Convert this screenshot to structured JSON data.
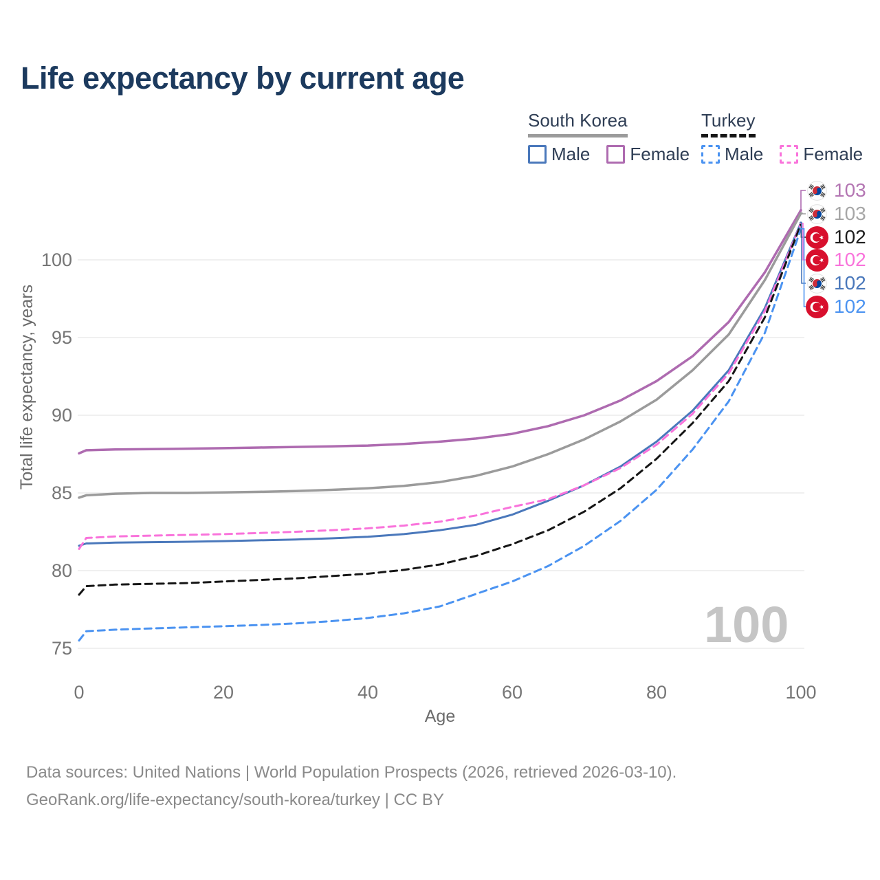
{
  "header": {
    "title": "Life expectancy by current age"
  },
  "legend": {
    "groups": [
      {
        "label": "South Korea",
        "line_style": "solid",
        "underline_color": "#9b9b9b",
        "items": [
          {
            "label": "Male",
            "color": "#4a78bb",
            "style": "solid"
          },
          {
            "label": "Female",
            "color": "#ae6bb0",
            "style": "solid"
          }
        ]
      },
      {
        "label": "Turkey",
        "line_style": "dashed",
        "underline_color": "#161616",
        "items": [
          {
            "label": "Male",
            "color": "#4b93f1",
            "style": "dashed"
          },
          {
            "label": "Female",
            "color": "#f973db",
            "style": "dashed"
          }
        ]
      }
    ]
  },
  "watermark_age": "100",
  "end_labels": [
    {
      "value": "103",
      "color": "#b476b3",
      "flag": "south-korea",
      "series": 0
    },
    {
      "value": "103",
      "color": "#a6a6a6",
      "flag": "south-korea",
      "series": 1
    },
    {
      "value": "102",
      "color": "#1d1d1d",
      "flag": "turkey",
      "series": 4
    },
    {
      "value": "102",
      "color": "#f973db",
      "flag": "turkey",
      "series": 3
    },
    {
      "value": "102",
      "color": "#4a78bb",
      "flag": "south-korea",
      "series": 2
    },
    {
      "value": "102",
      "color": "#4b93f1",
      "flag": "turkey",
      "series": 5
    }
  ],
  "footer": {
    "line1": "Data sources: United Nations | World Population Prospects (2026, retrieved 2026-03-10).",
    "line2": "GeoRank.org/life-expectancy/south-korea/turkey | CC BY"
  },
  "chart_data": {
    "type": "line",
    "title": "Life expectancy by current age",
    "xlabel": "Age",
    "ylabel": "Total life expectancy, years",
    "xlim": [
      0,
      100
    ],
    "ylim": [
      75,
      103.5
    ],
    "xticks": [
      0,
      20,
      40,
      60,
      80,
      100
    ],
    "yticks": [
      100,
      95,
      90,
      85,
      80,
      75
    ],
    "grid": "horizontal",
    "legend_position": "top-right",
    "x": [
      0,
      1,
      5,
      10,
      15,
      20,
      25,
      30,
      35,
      40,
      45,
      50,
      55,
      60,
      65,
      70,
      75,
      80,
      85,
      90,
      95,
      100
    ],
    "series": [
      {
        "name": "South Korea Female",
        "country": "South Korea",
        "sex": "Female",
        "style": "solid",
        "color": "#ae6bb0",
        "width": 3.5,
        "end_value_label": "103",
        "values": [
          87.55,
          87.75,
          87.8,
          87.82,
          87.85,
          87.88,
          87.92,
          87.96,
          88.0,
          88.05,
          88.15,
          88.3,
          88.5,
          88.8,
          89.3,
          90.0,
          90.95,
          92.2,
          93.8,
          96.0,
          99.2,
          103.2
        ]
      },
      {
        "name": "South Korea (both sexes)",
        "country": "South Korea",
        "sex": "Both",
        "style": "solid",
        "color": "#9b9b9b",
        "width": 3.5,
        "end_value_label": "103",
        "values": [
          84.7,
          84.85,
          84.95,
          85.0,
          85.0,
          85.03,
          85.07,
          85.12,
          85.2,
          85.3,
          85.45,
          85.7,
          86.1,
          86.7,
          87.5,
          88.45,
          89.6,
          91.0,
          92.9,
          95.2,
          98.7,
          103.0
        ]
      },
      {
        "name": "South Korea Male",
        "country": "South Korea",
        "sex": "Male",
        "style": "solid",
        "color": "#4a78bb",
        "width": 3,
        "end_value_label": "102",
        "values": [
          81.6,
          81.75,
          81.8,
          81.83,
          81.86,
          81.9,
          81.95,
          82.0,
          82.08,
          82.18,
          82.35,
          82.6,
          82.95,
          83.6,
          84.5,
          85.5,
          86.7,
          88.3,
          90.3,
          92.9,
          96.9,
          102.4
        ]
      },
      {
        "name": "Turkey Female",
        "country": "Turkey",
        "sex": "Female",
        "style": "dashed",
        "color": "#f973db",
        "width": 3,
        "end_value_label": "102",
        "values": [
          81.4,
          82.1,
          82.2,
          82.25,
          82.3,
          82.35,
          82.42,
          82.5,
          82.6,
          82.72,
          82.9,
          83.15,
          83.55,
          84.1,
          84.6,
          85.5,
          86.6,
          88.1,
          90.1,
          92.7,
          96.7,
          102.35
        ]
      },
      {
        "name": "Turkey (both sexes)",
        "country": "Turkey",
        "sex": "Both",
        "style": "dashed",
        "color": "#161616",
        "width": 3,
        "end_value_label": "102",
        "values": [
          78.45,
          79.0,
          79.1,
          79.15,
          79.2,
          79.3,
          79.4,
          79.5,
          79.65,
          79.8,
          80.05,
          80.4,
          80.95,
          81.7,
          82.6,
          83.8,
          85.3,
          87.2,
          89.5,
          92.2,
          96.3,
          102.3
        ]
      },
      {
        "name": "Turkey Male",
        "country": "Turkey",
        "sex": "Male",
        "style": "dashed",
        "color": "#4b93f1",
        "width": 3,
        "end_value_label": "102",
        "values": [
          75.5,
          76.1,
          76.2,
          76.28,
          76.35,
          76.42,
          76.5,
          76.6,
          76.75,
          76.95,
          77.25,
          77.7,
          78.5,
          79.3,
          80.3,
          81.6,
          83.2,
          85.2,
          87.8,
          90.9,
          95.3,
          102.0
        ]
      }
    ]
  }
}
